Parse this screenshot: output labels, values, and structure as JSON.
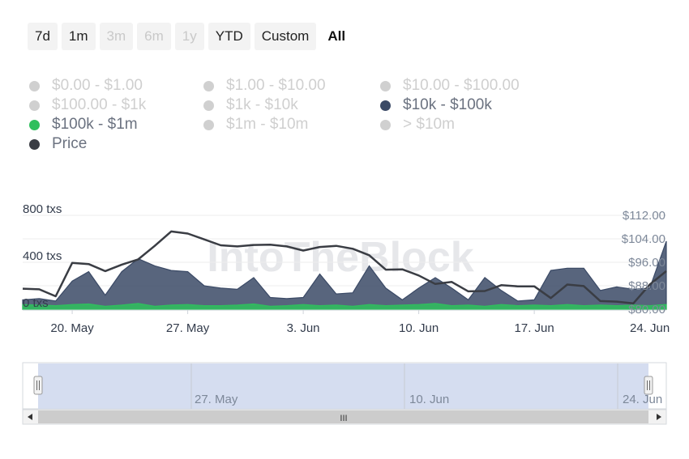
{
  "range_buttons": [
    {
      "label": "7d",
      "state": "normal"
    },
    {
      "label": "1m",
      "state": "normal"
    },
    {
      "label": "3m",
      "state": "disabled"
    },
    {
      "label": "6m",
      "state": "disabled"
    },
    {
      "label": "1y",
      "state": "disabled"
    },
    {
      "label": "YTD",
      "state": "normal"
    },
    {
      "label": "Custom",
      "state": "normal"
    },
    {
      "label": "All",
      "state": "active"
    }
  ],
  "legend": [
    {
      "label": "$0.00 - $1.00",
      "color": "#d0d0d0",
      "active": false
    },
    {
      "label": "$1.00 - $10.00",
      "color": "#d0d0d0",
      "active": false
    },
    {
      "label": "$10.00 - $100.00",
      "color": "#d0d0d0",
      "active": false
    },
    {
      "label": "$100.00 - $1k",
      "color": "#d0d0d0",
      "active": false
    },
    {
      "label": "$1k - $10k",
      "color": "#d0d0d0",
      "active": false
    },
    {
      "label": "$10k - $100k",
      "color": "#3b4a66",
      "active": true
    },
    {
      "label": "$100k - $1m",
      "color": "#2fbf5d",
      "active": true
    },
    {
      "label": "$1m - $10m",
      "color": "#d0d0d0",
      "active": false
    },
    {
      "label": "> $10m",
      "color": "#d0d0d0",
      "active": false
    },
    {
      "label": "Price",
      "color": "#3a3d44",
      "active": true
    }
  ],
  "watermark": "IntoTheBlock",
  "chart_data": {
    "type": "area",
    "x": [
      "May 17",
      "May 18",
      "May 19",
      "May 20",
      "May 21",
      "May 22",
      "May 23",
      "May 24",
      "May 25",
      "May 26",
      "May 27",
      "May 28",
      "May 29",
      "May 30",
      "May 31",
      "Jun 1",
      "Jun 2",
      "Jun 3",
      "Jun 4",
      "Jun 5",
      "Jun 6",
      "Jun 7",
      "Jun 8",
      "Jun 9",
      "Jun 10",
      "Jun 11",
      "Jun 12",
      "Jun 13",
      "Jun 14",
      "Jun 15",
      "Jun 16",
      "Jun 17",
      "Jun 18",
      "Jun 19",
      "Jun 20",
      "Jun 21",
      "Jun 22",
      "Jun 23",
      "Jun 24",
      "Jun 25"
    ],
    "x_ticks": [
      "20. May",
      "27. May",
      "3. Jun",
      "10. Jun",
      "17. Jun",
      "24. Jun"
    ],
    "y_left": {
      "label": "txs",
      "ticks": [
        "0 txs",
        "400 txs",
        "800 txs"
      ],
      "min": 0,
      "max": 800
    },
    "y_right": {
      "ticks": [
        "$80.00",
        "$88.00",
        "$96.00",
        "$104.00",
        "$112.00"
      ],
      "min": 80,
      "max": 112
    },
    "series": [
      {
        "name": "$10k - $100k",
        "axis": "left",
        "color": "#3b4a66",
        "values": [
          80,
          90,
          70,
          240,
          320,
          120,
          320,
          430,
          370,
          330,
          320,
          200,
          180,
          170,
          270,
          100,
          90,
          100,
          300,
          130,
          140,
          370,
          180,
          80,
          180,
          270,
          180,
          80,
          270,
          160,
          70,
          80,
          330,
          350,
          350,
          160,
          190,
          170,
          180,
          580
        ]
      },
      {
        "name": "$100k - $1m",
        "axis": "left",
        "color": "#2fbf5d",
        "values": [
          40,
          35,
          30,
          40,
          45,
          25,
          35,
          50,
          25,
          35,
          40,
          30,
          30,
          35,
          45,
          25,
          30,
          40,
          30,
          35,
          25,
          40,
          30,
          35,
          40,
          50,
          30,
          35,
          25,
          40,
          30,
          35,
          30,
          40,
          30,
          35,
          30,
          35,
          30,
          40
        ]
      },
      {
        "name": "Price",
        "axis": "right",
        "color": "#3a3d44",
        "values": [
          87,
          86.8,
          84.4,
          95.8,
          95.4,
          93,
          95.2,
          97,
          101.6,
          106.5,
          105.8,
          103.8,
          101.8,
          101.4,
          101.9,
          102,
          101.4,
          100,
          101.2,
          101.6,
          100.6,
          98.4,
          93.5,
          93.6,
          91.5,
          88.6,
          89.3,
          86.1,
          86.2,
          88.2,
          87.8,
          87.8,
          83.8,
          88.4,
          87.9,
          82.8,
          82.6,
          82,
          88.4,
          93
        ]
      }
    ]
  },
  "navigator": {
    "ticks": [
      "27. May",
      "10. Jun",
      "24. Jun"
    ],
    "scroll_grip": "III"
  }
}
